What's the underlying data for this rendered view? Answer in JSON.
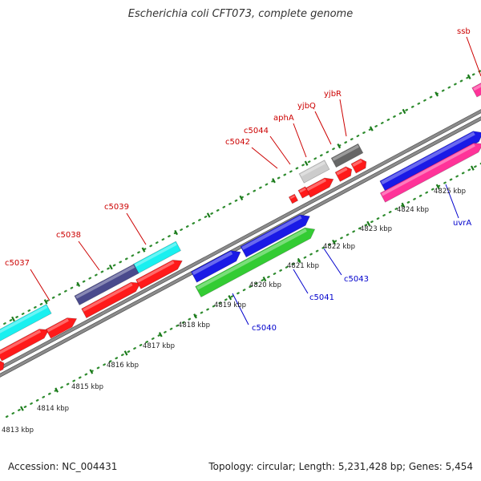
{
  "title": "Escherichia coli CFT073, complete genome",
  "footer": {
    "accession": "Accession: NC_004431",
    "summary": "Topology: circular; Length: 5,231,428 bp; Genes: 5,454"
  },
  "colors": {
    "background": "#ffffff",
    "backbone": "#8c8c8c",
    "tick_dots": "#2e8b2e",
    "forward_label": "#cc0000",
    "reverse_label": "#0000cc",
    "scale_label": "#222222"
  },
  "scale_labels": [
    "4813 kbp",
    "4814 kbp",
    "4815 kbp",
    "4816 kbp",
    "4817 kbp",
    "4818 kbp",
    "4819 kbp",
    "4820 kbp",
    "4821 kbp",
    "4822 kbp",
    "4823 kbp",
    "4824 kbp",
    "4825 kbp"
  ],
  "forward_gene_labels": [
    "c5037",
    "c5038",
    "c5039",
    "c5042",
    "c5044",
    "aphA",
    "yjbQ",
    "yjbR",
    "ssb"
  ],
  "reverse_gene_labels": [
    "c5040",
    "c5041",
    "c5043",
    "uvrA"
  ],
  "feature_colors": {
    "cyan": "#19f0f0",
    "navy": "#4a4a8c",
    "red": "#ff1a1a",
    "blue": "#1a1ae6",
    "green": "#33cc33",
    "pink": "#ff3399",
    "lightgray": "#cccccc",
    "darkgray": "#666666"
  }
}
